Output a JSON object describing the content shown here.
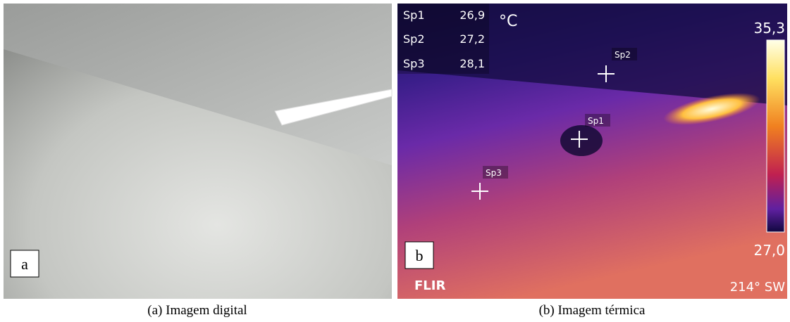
{
  "panels": [
    {
      "label": "a",
      "caption": "(a) Imagem digital"
    },
    {
      "label": "b",
      "caption": "(b) Imagem térmica",
      "unit": "°C",
      "spots": [
        {
          "name": "Sp1",
          "value": "26,9"
        },
        {
          "name": "Sp2",
          "value": "27,2"
        },
        {
          "name": "Sp3",
          "value": "28,1"
        }
      ],
      "scale_max": "35,3",
      "scale_min": "27,0",
      "brand": "FLIR",
      "compass": "214° SW"
    }
  ]
}
